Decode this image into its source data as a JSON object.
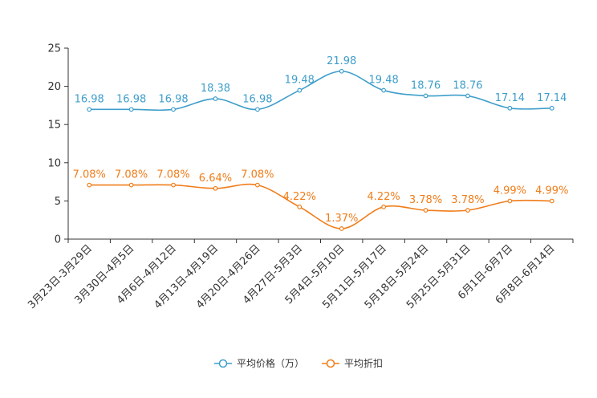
{
  "chart_data": {
    "type": "line",
    "categories": [
      "3月23日-3月29日",
      "3月30日-4月5日",
      "4月6日-4月12日",
      "4月13日-4月19日",
      "4月20日-4月26日",
      "4月27日-5月3日",
      "5月4日-5月10日",
      "5月11日-5月17日",
      "5月18日-5月24日",
      "5月25日-5月31日",
      "6月1日-6月7日",
      "6月8日-6月14日"
    ],
    "ylim": [
      0,
      25
    ],
    "yticks": [
      0,
      5,
      10,
      15,
      20,
      25
    ],
    "series": [
      {
        "name": "平均价格（万）",
        "color": "#3e9ecb",
        "values": [
          16.98,
          16.98,
          16.98,
          18.38,
          16.98,
          19.48,
          21.98,
          19.48,
          18.76,
          18.76,
          17.14,
          17.14
        ],
        "labels": [
          "16.98",
          "16.98",
          "16.98",
          "18.38",
          "16.98",
          "19.48",
          "21.98",
          "19.48",
          "18.76",
          "18.76",
          "17.14",
          "17.14"
        ]
      },
      {
        "name": "平均折扣",
        "color": "#f07d1a",
        "values": [
          7.08,
          7.08,
          7.08,
          6.64,
          7.08,
          4.22,
          1.37,
          4.22,
          3.78,
          3.78,
          4.99,
          4.99
        ],
        "labels": [
          "7.08%",
          "7.08%",
          "7.08%",
          "6.64%",
          "7.08%",
          "4.22%",
          "1.37%",
          "4.22%",
          "3.78%",
          "3.78%",
          "4.99%",
          "4.99%"
        ]
      }
    ],
    "legend": [
      "平均价格（万）",
      "平均折扣"
    ],
    "legend_position": "bottom"
  }
}
